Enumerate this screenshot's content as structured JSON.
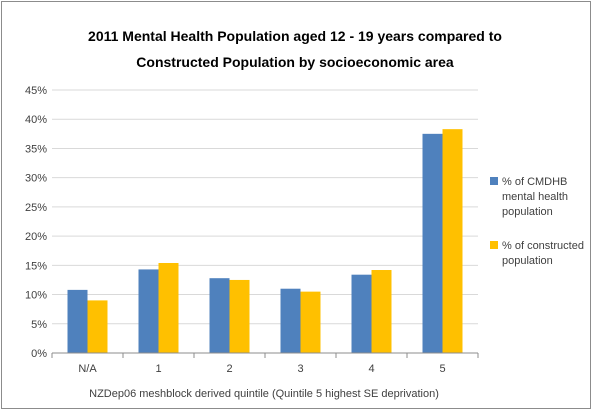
{
  "chart_data": {
    "type": "bar",
    "title_line1": "2011 Mental Health Population aged 12 - 19 years compared to",
    "title_line2": "Constructed Population by socioeconomic area",
    "xlabel": "NZDep06 meshblock derived quintile (Quintile 5 highest SE deprivation)",
    "ylabel": "",
    "categories": [
      "N/A",
      "1",
      "2",
      "3",
      "4",
      "5"
    ],
    "ylim": [
      0,
      45
    ],
    "yticks": [
      "0%",
      "5%",
      "10%",
      "15%",
      "20%",
      "25%",
      "30%",
      "35%",
      "40%",
      "45%"
    ],
    "ytick_values": [
      0,
      5,
      10,
      15,
      20,
      25,
      30,
      35,
      40,
      45
    ],
    "grid": true,
    "legend_position": "right",
    "series": [
      {
        "name_lines": [
          "% of CMDHB",
          "mental health",
          "population"
        ],
        "color": "#4f81bd",
        "values": [
          10.8,
          14.3,
          12.8,
          11.0,
          13.4,
          37.5
        ]
      },
      {
        "name_lines": [
          "% of constructed",
          "population"
        ],
        "color": "#ffc000",
        "values": [
          9.0,
          15.4,
          12.5,
          10.5,
          14.2,
          38.3
        ]
      }
    ]
  }
}
